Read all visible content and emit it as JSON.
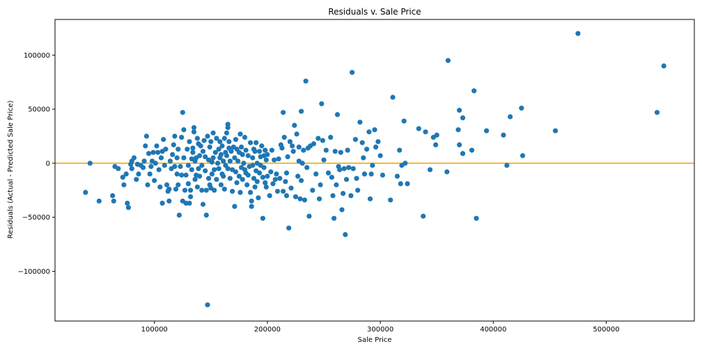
{
  "chart_data": {
    "type": "scatter",
    "title": "Residuals v. Sale Price",
    "xlabel": "Sale Price",
    "ylabel": "Residuals (Actual - Predicted Sale Price)",
    "xlim": [
      12000,
      578000
    ],
    "ylim": [
      -146000,
      133000
    ],
    "x_ticks": [
      100000,
      200000,
      300000,
      400000,
      500000
    ],
    "y_ticks": [
      -100000,
      -50000,
      0,
      50000,
      100000
    ],
    "x_tick_labels": [
      "100000",
      "200000",
      "300000",
      "400000",
      "500000"
    ],
    "y_tick_labels": [
      "−100000",
      "−50000",
      "0",
      "50000",
      "100000"
    ],
    "grid": false,
    "reference_line": {
      "y": 0,
      "color": "#f2b736"
    },
    "marker_color": "#1f77b4",
    "points": [
      [
        39000,
        -27000
      ],
      [
        43000,
        0
      ],
      [
        51000,
        -35000
      ],
      [
        63000,
        -30000
      ],
      [
        64000,
        -35000
      ],
      [
        65000,
        -3000
      ],
      [
        68000,
        -5000
      ],
      [
        72000,
        -13000
      ],
      [
        73000,
        -20000
      ],
      [
        75000,
        -10000
      ],
      [
        76000,
        -37000
      ],
      [
        77000,
        -41000
      ],
      [
        79000,
        -1000
      ],
      [
        80000,
        2000
      ],
      [
        80000,
        -5000
      ],
      [
        82000,
        5000
      ],
      [
        84000,
        -15000
      ],
      [
        85000,
        -1000
      ],
      [
        86000,
        -10000
      ],
      [
        88000,
        -2000
      ],
      [
        90000,
        -4000
      ],
      [
        91000,
        2000
      ],
      [
        92000,
        16000
      ],
      [
        93000,
        25000
      ],
      [
        94000,
        -20000
      ],
      [
        95000,
        9000
      ],
      [
        96000,
        -10000
      ],
      [
        97000,
        -3000
      ],
      [
        98000,
        2000
      ],
      [
        99000,
        10000
      ],
      [
        100000,
        -16000
      ],
      [
        101000,
        0
      ],
      [
        102000,
        16000
      ],
      [
        103000,
        10000
      ],
      [
        104000,
        -6000
      ],
      [
        105000,
        -22000
      ],
      [
        106000,
        5000
      ],
      [
        107000,
        -37000
      ],
      [
        107000,
        11000
      ],
      [
        108000,
        22000
      ],
      [
        109000,
        -2000
      ],
      [
        110000,
        13000
      ],
      [
        111000,
        -20000
      ],
      [
        112000,
        -26000
      ],
      [
        113000,
        -24000
      ],
      [
        113000,
        -35000
      ],
      [
        114000,
        2000
      ],
      [
        115000,
        -5000
      ],
      [
        116000,
        8000
      ],
      [
        117000,
        17000
      ],
      [
        118000,
        25000
      ],
      [
        118000,
        -3000
      ],
      [
        119000,
        -24000
      ],
      [
        120000,
        -10000
      ],
      [
        120000,
        5000
      ],
      [
        121000,
        13000
      ],
      [
        121000,
        -20000
      ],
      [
        122000,
        -48000
      ],
      [
        123000,
        -3000
      ],
      [
        124000,
        -11000
      ],
      [
        124000,
        24000
      ],
      [
        125000,
        -35000
      ],
      [
        125000,
        47000
      ],
      [
        126000,
        31000
      ],
      [
        126000,
        5000
      ],
      [
        127000,
        -25000
      ],
      [
        128000,
        -11000
      ],
      [
        128000,
        -37000
      ],
      [
        129000,
        13000
      ],
      [
        130000,
        -19000
      ],
      [
        130000,
        -2000
      ],
      [
        131000,
        20000
      ],
      [
        131000,
        -37000
      ],
      [
        132000,
        -31000
      ],
      [
        132000,
        -25000
      ],
      [
        133000,
        4000
      ],
      [
        133000,
        -6000
      ],
      [
        134000,
        10000
      ],
      [
        134000,
        14000
      ],
      [
        135000,
        29000
      ],
      [
        135000,
        33000
      ],
      [
        136000,
        2000
      ],
      [
        136000,
        -15000
      ],
      [
        137000,
        5000
      ],
      [
        137000,
        -11000
      ],
      [
        138000,
        -22000
      ],
      [
        138000,
        23000
      ],
      [
        139000,
        18000
      ],
      [
        139000,
        -5000
      ],
      [
        140000,
        -12000
      ],
      [
        140000,
        7000
      ],
      [
        141000,
        16000
      ],
      [
        142000,
        -2000
      ],
      [
        142000,
        -25000
      ],
      [
        143000,
        -38000
      ],
      [
        143000,
        11000
      ],
      [
        144000,
        21000
      ],
      [
        145000,
        -7000
      ],
      [
        145000,
        6000
      ],
      [
        146000,
        -48000
      ],
      [
        146000,
        -25000
      ],
      [
        147000,
        25000
      ],
      [
        147000,
        -131000
      ],
      [
        148000,
        3000
      ],
      [
        148000,
        -14000
      ],
      [
        149000,
        15000
      ],
      [
        149000,
        -20000
      ],
      [
        150000,
        -23000
      ],
      [
        150000,
        20000
      ],
      [
        151000,
        1000
      ],
      [
        151000,
        -10000
      ],
      [
        152000,
        5000
      ],
      [
        152000,
        28000
      ],
      [
        153000,
        -6000
      ],
      [
        153000,
        -25000
      ],
      [
        154000,
        10000
      ],
      [
        155000,
        23000
      ],
      [
        155000,
        -15000
      ],
      [
        156000,
        0
      ],
      [
        157000,
        13000
      ],
      [
        157000,
        -5000
      ],
      [
        158000,
        5000
      ],
      [
        158000,
        20000
      ],
      [
        159000,
        -20000
      ],
      [
        159000,
        8000
      ],
      [
        160000,
        -10000
      ],
      [
        160000,
        16000
      ],
      [
        161000,
        2000
      ],
      [
        161000,
        -12000
      ],
      [
        162000,
        23000
      ],
      [
        162000,
        -24000
      ],
      [
        163000,
        10000
      ],
      [
        163000,
        -2000
      ],
      [
        164000,
        28000
      ],
      [
        164000,
        7000
      ],
      [
        165000,
        36000
      ],
      [
        165000,
        33000
      ],
      [
        165000,
        -5000
      ],
      [
        166000,
        14000
      ],
      [
        166000,
        20000
      ],
      [
        167000,
        -14000
      ],
      [
        167000,
        2000
      ],
      [
        168000,
        11000
      ],
      [
        169000,
        -6000
      ],
      [
        169000,
        -26000
      ],
      [
        170000,
        15000
      ],
      [
        171000,
        -40000
      ],
      [
        171000,
        5000
      ],
      [
        172000,
        22000
      ],
      [
        172000,
        -8000
      ],
      [
        173000,
        -18000
      ],
      [
        173000,
        13000
      ],
      [
        174000,
        2000
      ],
      [
        175000,
        10000
      ],
      [
        175000,
        -12000
      ],
      [
        176000,
        -27000
      ],
      [
        176000,
        27000
      ],
      [
        177000,
        -4000
      ],
      [
        177000,
        15000
      ],
      [
        178000,
        8000
      ],
      [
        178000,
        -15000
      ],
      [
        179000,
        0
      ],
      [
        180000,
        24000
      ],
      [
        180000,
        -6000
      ],
      [
        181000,
        12000
      ],
      [
        181000,
        -9000
      ],
      [
        182000,
        -20000
      ],
      [
        183000,
        7000
      ],
      [
        183000,
        -11000
      ],
      [
        184000,
        -3000
      ],
      [
        185000,
        19000
      ],
      [
        185000,
        -27000
      ],
      [
        186000,
        -40000
      ],
      [
        186000,
        -35000
      ],
      [
        187000,
        5000
      ],
      [
        187000,
        -2000
      ],
      [
        188000,
        13000
      ],
      [
        188000,
        -14000
      ],
      [
        189000,
        11000
      ],
      [
        189000,
        -22000
      ],
      [
        190000,
        -7000
      ],
      [
        190000,
        19000
      ],
      [
        191000,
        0
      ],
      [
        191000,
        -17000
      ],
      [
        192000,
        -32000
      ],
      [
        193000,
        -9000
      ],
      [
        193000,
        11000
      ],
      [
        194000,
        6000
      ],
      [
        194000,
        -2000
      ],
      [
        195000,
        16000
      ],
      [
        196000,
        -13000
      ],
      [
        196000,
        -51000
      ],
      [
        197000,
        -4000
      ],
      [
        197000,
        7000
      ],
      [
        198000,
        12000
      ],
      [
        198000,
        -18000
      ],
      [
        199000,
        3000
      ],
      [
        199000,
        -22000
      ],
      [
        200000,
        -12000
      ],
      [
        200000,
        8000
      ],
      [
        202000,
        -30000
      ],
      [
        203000,
        -8000
      ],
      [
        204000,
        12000
      ],
      [
        205000,
        -19000
      ],
      [
        206000,
        3000
      ],
      [
        207000,
        -15000
      ],
      [
        208000,
        -10000
      ],
      [
        209000,
        -26000
      ],
      [
        210000,
        4000
      ],
      [
        211000,
        -14000
      ],
      [
        212000,
        17000
      ],
      [
        213000,
        14000
      ],
      [
        214000,
        -26000
      ],
      [
        214000,
        47000
      ],
      [
        215000,
        24000
      ],
      [
        216000,
        -17000
      ],
      [
        217000,
        -9000
      ],
      [
        217000,
        -30000
      ],
      [
        218000,
        6000
      ],
      [
        219000,
        -60000
      ],
      [
        220000,
        20000
      ],
      [
        221000,
        -23000
      ],
      [
        222000,
        16000
      ],
      [
        223000,
        11000
      ],
      [
        224000,
        35000
      ],
      [
        225000,
        -31000
      ],
      [
        226000,
        27000
      ],
      [
        227000,
        -12000
      ],
      [
        228000,
        15000
      ],
      [
        228000,
        2000
      ],
      [
        229000,
        -33000
      ],
      [
        230000,
        48000
      ],
      [
        230000,
        -16000
      ],
      [
        231000,
        0
      ],
      [
        232000,
        12000
      ],
      [
        233000,
        -34000
      ],
      [
        234000,
        76000
      ],
      [
        235000,
        -4000
      ],
      [
        236000,
        14000
      ],
      [
        237000,
        -49000
      ],
      [
        238000,
        16000
      ],
      [
        240000,
        -25000
      ],
      [
        241000,
        18000
      ],
      [
        243000,
        -10000
      ],
      [
        245000,
        23000
      ],
      [
        246000,
        -33000
      ],
      [
        247000,
        -20000
      ],
      [
        248000,
        55000
      ],
      [
        249000,
        21000
      ],
      [
        250000,
        3000
      ],
      [
        252000,
        12000
      ],
      [
        254000,
        -9000
      ],
      [
        256000,
        24000
      ],
      [
        257000,
        -13000
      ],
      [
        258000,
        -30000
      ],
      [
        259000,
        -51000
      ],
      [
        260000,
        11000
      ],
      [
        261000,
        -20000
      ],
      [
        262000,
        45000
      ],
      [
        263000,
        -3000
      ],
      [
        264000,
        -6000
      ],
      [
        265000,
        10000
      ],
      [
        266000,
        -43000
      ],
      [
        267000,
        -28000
      ],
      [
        268000,
        -5000
      ],
      [
        269000,
        -66000
      ],
      [
        270000,
        -15000
      ],
      [
        271000,
        12000
      ],
      [
        272000,
        -4000
      ],
      [
        274000,
        -30000
      ],
      [
        275000,
        84000
      ],
      [
        276000,
        -5000
      ],
      [
        278000,
        22000
      ],
      [
        279000,
        -14000
      ],
      [
        280000,
        -25000
      ],
      [
        282000,
        38000
      ],
      [
        284000,
        19000
      ],
      [
        285000,
        5000
      ],
      [
        286000,
        -10000
      ],
      [
        288000,
        13000
      ],
      [
        290000,
        29000
      ],
      [
        291000,
        -33000
      ],
      [
        292000,
        -10000
      ],
      [
        293000,
        -2000
      ],
      [
        295000,
        31000
      ],
      [
        296000,
        15000
      ],
      [
        298000,
        20000
      ],
      [
        300000,
        7000
      ],
      [
        302000,
        -11000
      ],
      [
        309000,
        -34000
      ],
      [
        311000,
        61000
      ],
      [
        315000,
        -12000
      ],
      [
        317000,
        12000
      ],
      [
        318000,
        -19000
      ],
      [
        319000,
        -2000
      ],
      [
        321000,
        39000
      ],
      [
        322000,
        0
      ],
      [
        324000,
        -19000
      ],
      [
        334000,
        32000
      ],
      [
        338000,
        -49000
      ],
      [
        340000,
        29000
      ],
      [
        344000,
        -6000
      ],
      [
        347000,
        24000
      ],
      [
        349000,
        17000
      ],
      [
        350000,
        26000
      ],
      [
        359000,
        -8000
      ],
      [
        360000,
        95000
      ],
      [
        369000,
        31000
      ],
      [
        370000,
        49000
      ],
      [
        370000,
        17000
      ],
      [
        373000,
        9000
      ],
      [
        373000,
        42000
      ],
      [
        381000,
        12000
      ],
      [
        383000,
        67000
      ],
      [
        385000,
        -51000
      ],
      [
        394000,
        30000
      ],
      [
        409000,
        26000
      ],
      [
        412000,
        -2000
      ],
      [
        415000,
        43000
      ],
      [
        425000,
        51000
      ],
      [
        426000,
        7000
      ],
      [
        455000,
        30000
      ],
      [
        475000,
        120000
      ],
      [
        545000,
        47000
      ],
      [
        551000,
        90000
      ]
    ]
  }
}
